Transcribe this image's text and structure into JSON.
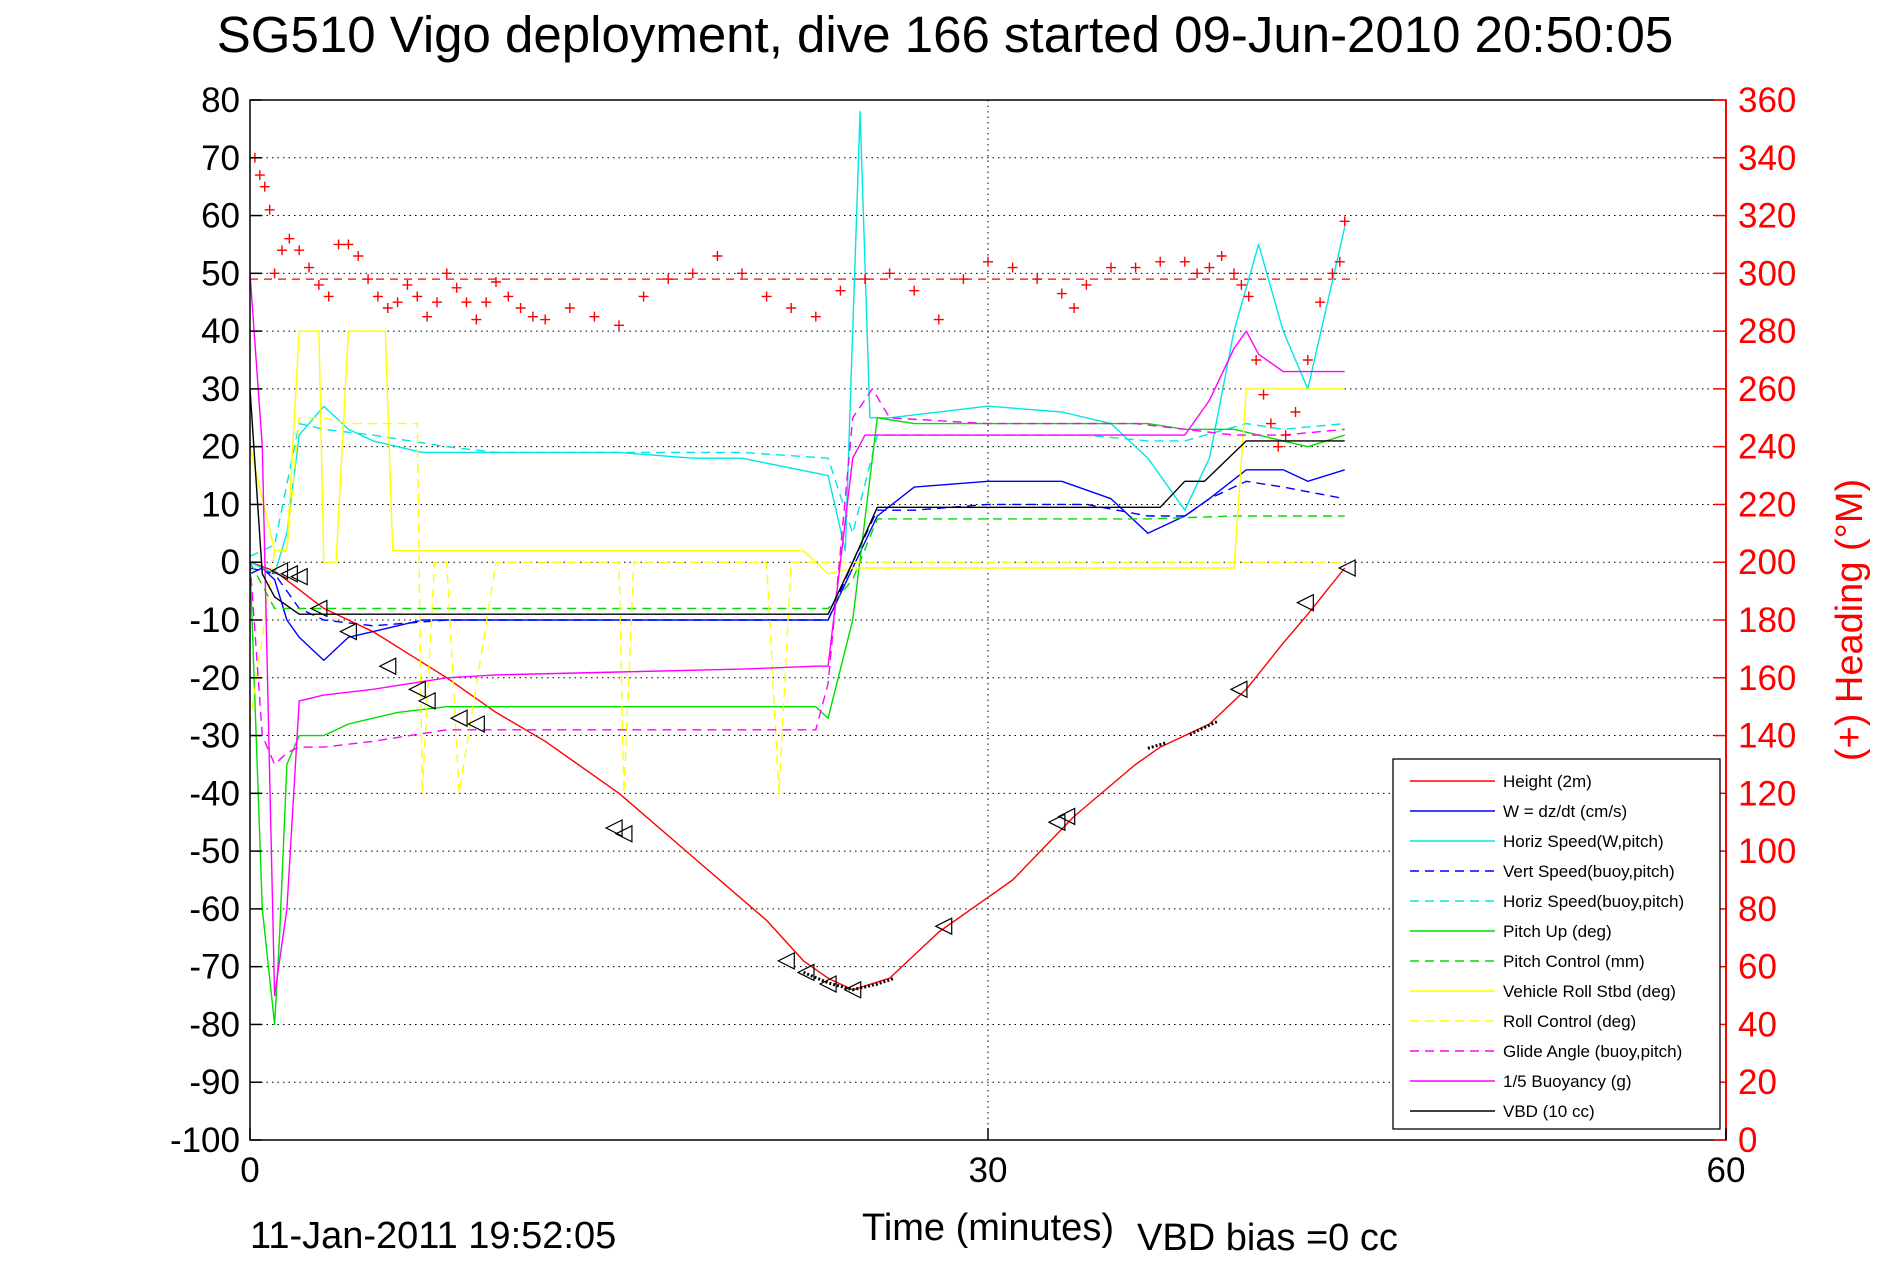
{
  "title": "SG510 Vigo deployment, dive 166 started 09-Jun-2010 20:50:05",
  "footer_left": "11-Jan-2011 19:52:05",
  "footer_right": "VBD bias =0 cc",
  "chart_data": {
    "type": "line",
    "title": "SG510 Vigo deployment, dive 166 started 09-Jun-2010 20:50:05",
    "xlabel": "Time (minutes)",
    "ylabel": "",
    "y2label": "(+) Heading (°M)",
    "xlim": [
      0,
      60
    ],
    "ylim": [
      -100,
      80
    ],
    "y2lim": [
      0,
      360
    ],
    "xticks": [
      0,
      30,
      60
    ],
    "yticks": [
      80,
      70,
      60,
      50,
      40,
      30,
      20,
      10,
      0,
      -10,
      -20,
      -30,
      -40,
      -50,
      -60,
      -70,
      -80,
      -90,
      -100
    ],
    "y2ticks": [
      360,
      340,
      320,
      300,
      280,
      260,
      240,
      220,
      200,
      180,
      160,
      140,
      120,
      100,
      80,
      60,
      40,
      20,
      0
    ],
    "grid": true,
    "legend_position": "bottom-right",
    "series": [
      {
        "name": "Height (2m)",
        "color": "#ff0000",
        "style": "solid",
        "x": [
          0,
          1,
          3,
          5,
          8,
          10,
          12,
          15,
          18,
          21,
          22.5,
          23.5,
          24.5,
          26,
          28,
          31,
          33.5,
          36,
          37,
          38,
          39,
          40.5,
          42,
          43,
          44.5
        ],
        "y": [
          0,
          -1.5,
          -8,
          -12,
          -20,
          -26,
          -31,
          -40,
          -51,
          -62,
          -69,
          -72,
          -74,
          -72,
          -64,
          -55,
          -44,
          -35,
          -32,
          -30,
          -28,
          -22,
          -14,
          -9,
          -1
        ]
      },
      {
        "name": "W = dz/dt (cm/s)",
        "color": "#0000ff",
        "style": "solid",
        "x": [
          0,
          0.5,
          1,
          1.5,
          2,
          3,
          4,
          5,
          6,
          7,
          8,
          10,
          15,
          20,
          23.5,
          24.5,
          25.5,
          27,
          30,
          33,
          35,
          36.5,
          38,
          39,
          40.5,
          42,
          43,
          44.5
        ],
        "y": [
          -2,
          -1,
          -3,
          -10,
          -13,
          -17,
          -13,
          -12,
          -11,
          -10,
          -10,
          -10,
          -10,
          -10,
          -10,
          -1,
          8,
          13,
          14,
          14,
          11,
          5,
          8,
          11,
          16,
          16,
          14,
          16
        ]
      },
      {
        "name": "Horiz Speed(W,pitch)",
        "color": "#00e6e6",
        "style": "solid",
        "x": [
          0,
          1,
          1.5,
          2,
          3,
          4,
          5,
          6,
          7,
          8,
          10,
          12,
          15,
          18,
          20,
          23.5,
          24.2,
          24.8,
          25.2,
          26,
          30,
          33,
          35,
          36.5,
          38,
          39,
          40,
          41,
          42,
          43,
          44.5
        ],
        "y": [
          0,
          -2,
          5,
          22,
          27,
          23,
          21,
          20,
          19,
          19,
          19,
          19,
          19,
          18,
          18,
          15,
          2,
          78,
          25,
          25,
          27,
          26,
          24,
          18,
          9,
          18,
          40,
          55,
          40,
          30,
          58
        ]
      },
      {
        "name": "Vert Speed(buoy,pitch)",
        "color": "#0000ff",
        "style": "dashed",
        "x": [
          0,
          1,
          2,
          3,
          5,
          8,
          10,
          15,
          20,
          23.5,
          24.5,
          25.5,
          27,
          30,
          34,
          36.5,
          38,
          39,
          40.5,
          42,
          44.5
        ],
        "y": [
          -1,
          -2,
          -8,
          -10,
          -11,
          -10,
          -10,
          -10,
          -10,
          -10,
          0,
          9,
          9,
          10,
          10,
          8,
          8,
          11,
          14,
          13,
          11
        ]
      },
      {
        "name": "Horiz Speed(buoy,pitch)",
        "color": "#00e6e6",
        "style": "dashed",
        "x": [
          0,
          1,
          2,
          3,
          5,
          8,
          10,
          15,
          20,
          23.5,
          24.5,
          25.5,
          27,
          30,
          34,
          36.5,
          38,
          40.5,
          42,
          44.5
        ],
        "y": [
          1,
          3,
          24,
          23,
          22,
          20,
          19,
          19,
          19,
          18,
          5,
          22,
          22,
          22,
          22,
          21,
          21,
          24,
          23,
          24
        ]
      },
      {
        "name": "Pitch Up (deg)",
        "color": "#00dd00",
        "style": "solid",
        "x": [
          0,
          0.5,
          1,
          1.2,
          1.5,
          2,
          3,
          4,
          5,
          6,
          8,
          10,
          15,
          20,
          23,
          23.5,
          24.5,
          25.5,
          27,
          30,
          34,
          36.5,
          38,
          40,
          41,
          42,
          43,
          44.5
        ],
        "y": [
          0,
          -60,
          -80,
          -65,
          -35,
          -30,
          -30,
          -28,
          -27,
          -26,
          -25,
          -25,
          -25,
          -25,
          -25,
          -27,
          -10,
          25,
          24,
          24,
          24,
          24,
          23,
          23,
          22,
          21,
          20,
          22
        ]
      },
      {
        "name": "Pitch Control (mm)",
        "color": "#00dd00",
        "style": "dashed",
        "x": [
          0,
          1,
          2,
          3,
          10,
          20,
          23.5,
          24.5,
          25.5,
          30,
          36.5,
          40,
          44.5
        ],
        "y": [
          0,
          -8,
          -8,
          -8,
          -8,
          -8,
          -8,
          -3,
          7.5,
          7.5,
          7.5,
          8,
          8
        ]
      },
      {
        "name": "Vehicle Roll Stbd (deg)",
        "color": "#ffff00",
        "style": "solid",
        "x": [
          0,
          1,
          1.5,
          2,
          2.8,
          3,
          3.5,
          4,
          4.2,
          5,
          5.5,
          5.8,
          6,
          10,
          15,
          20,
          22.5,
          23.5,
          24.5,
          26,
          28,
          28.5,
          30,
          33,
          33.5,
          34,
          36,
          40,
          40.5,
          44.5
        ],
        "y": [
          20,
          2,
          2,
          40,
          40,
          0,
          0,
          40,
          40,
          40,
          40,
          2,
          2,
          2,
          2,
          2,
          2,
          -2,
          -1,
          -1,
          -1,
          -1,
          -1,
          -1,
          -1,
          -1,
          -1,
          -1,
          30,
          30
        ]
      },
      {
        "name": "Roll Control (deg)",
        "color": "#ffff00",
        "style": "dashed",
        "x": [
          0,
          1,
          1.5,
          2,
          3,
          4,
          5,
          6,
          6.8,
          7,
          7.5,
          8,
          8.5,
          10,
          15,
          15.2,
          15.6,
          16,
          21,
          21.5,
          22,
          23,
          24.5,
          26,
          28,
          30,
          33,
          34,
          36,
          40,
          44.5
        ],
        "y": [
          -28,
          2,
          2,
          25,
          25,
          24,
          24,
          24,
          24,
          -40,
          0,
          0,
          -40,
          0,
          0,
          -40,
          0,
          0,
          0,
          -40,
          0,
          0,
          0,
          0,
          0,
          0,
          0,
          0,
          0,
          0,
          0
        ]
      },
      {
        "name": "Glide Angle (buoy,pitch)",
        "color": "#ff00ff",
        "style": "dashed",
        "x": [
          0,
          0.5,
          1,
          1.5,
          2,
          3,
          5,
          8,
          10,
          15,
          20,
          23,
          23.5,
          24.5,
          25.3,
          26,
          30,
          34,
          36,
          38,
          40,
          42,
          44.5
        ],
        "y": [
          0,
          -30,
          -35,
          -33,
          -32,
          -32,
          -31,
          -29,
          -29,
          -29,
          -29,
          -29,
          -21,
          25,
          30,
          25,
          24,
          24,
          24,
          23,
          22,
          22,
          23
        ]
      },
      {
        "name": "1/5 Buoyancy (g)",
        "color": "#ff00ff",
        "style": "solid",
        "x": [
          0,
          0.5,
          1,
          1.5,
          2,
          3,
          5,
          8,
          10,
          15,
          20,
          23,
          23.5,
          24.5,
          25,
          27,
          30,
          34,
          38,
          39,
          40,
          40.5,
          41,
          42,
          44.5
        ],
        "y": [
          50,
          20,
          -75,
          -60,
          -24,
          -23,
          -22,
          -20,
          -19.5,
          -19,
          -18.5,
          -18,
          -18,
          18,
          22,
          22,
          22,
          22,
          22,
          28,
          37,
          40,
          36,
          33,
          33
        ]
      },
      {
        "name": "VBD (10 cc)",
        "color": "#000000",
        "style": "solid",
        "x": [
          0,
          0.5,
          1,
          2,
          3,
          10,
          20,
          23.5,
          24.5,
          25.5,
          27,
          30,
          34,
          37,
          38,
          38.8,
          40.5,
          42,
          44.5
        ],
        "y": [
          30,
          -2,
          -6,
          -9,
          -9,
          -9,
          -9,
          -9,
          0,
          9.5,
          9.5,
          9.5,
          9.5,
          9.5,
          14,
          14,
          21,
          21,
          21
        ]
      }
    ],
    "heading_axis": "right",
    "heading_reference": {
      "name": "heading-reference",
      "color": "#ff0000",
      "style": "dashed",
      "value": 298
    },
    "heading_points": {
      "name": "(+) Heading (°M)",
      "color": "#ff0000",
      "marker": "+",
      "x": [
        0.2,
        0.4,
        0.6,
        0.8,
        1.0,
        1.3,
        1.6,
        2.0,
        2.4,
        2.8,
        3.2,
        3.6,
        4.0,
        4.4,
        4.8,
        5.2,
        5.6,
        6.0,
        6.4,
        6.8,
        7.2,
        7.6,
        8.0,
        8.4,
        8.8,
        9.2,
        9.6,
        10.0,
        10.5,
        11.0,
        11.5,
        12.0,
        13.0,
        14.0,
        15.0,
        16.0,
        17.0,
        18.0,
        19.0,
        20.0,
        21.0,
        22.0,
        23.0,
        24.0,
        25.0,
        26.0,
        27.0,
        28.0,
        29.0,
        30.0,
        31.0,
        32.0,
        33.0,
        33.5,
        34.0,
        35.0,
        36.0,
        37.0,
        38.0,
        38.5,
        39.0,
        39.5,
        40.0,
        40.3,
        40.6,
        40.9,
        41.2,
        41.5,
        41.8,
        42.1,
        42.5,
        43.0,
        43.5,
        44.0,
        44.3,
        44.5
      ],
      "y": [
        340,
        334,
        330,
        322,
        300,
        308,
        312,
        308,
        302,
        296,
        292,
        310,
        310,
        306,
        298,
        292,
        288,
        290,
        296,
        292,
        285,
        290,
        300,
        295,
        290,
        284,
        290,
        297,
        292,
        288,
        285,
        284,
        288,
        285,
        282,
        292,
        298,
        300,
        306,
        300,
        292,
        288,
        285,
        294,
        298,
        300,
        294,
        284,
        298,
        304,
        302,
        298,
        293,
        288,
        296,
        302,
        302,
        304,
        304,
        300,
        302,
        306,
        300,
        296,
        292,
        270,
        258,
        248,
        240,
        244,
        252,
        270,
        290,
        300,
        304,
        318
      ]
    },
    "triangle_markers": {
      "color": "#000000",
      "marker": "triangle",
      "x": [
        1.2,
        1.6,
        2.0,
        2.8,
        4.0,
        5.6,
        6.8,
        7.2,
        8.5,
        9.2,
        14.8,
        15.2,
        21.8,
        22.6,
        23.5,
        24.5,
        28.2,
        32.8,
        33.2,
        40.2,
        42.9,
        44.6
      ],
      "y": [
        -1.5,
        -2,
        -2.5,
        -8,
        -12,
        -18,
        -22,
        -24,
        -27,
        -28,
        -46,
        -47,
        -69,
        -71,
        -73,
        -74,
        -63,
        -45,
        -44,
        -22,
        -7,
        -1
      ]
    },
    "sample_segments": [
      {
        "color": "#000000",
        "x": [
          22.5,
          23.5,
          24.5,
          25.5,
          26.2
        ],
        "y": [
          -71,
          -72.8,
          -74,
          -73,
          -72
        ]
      },
      {
        "color": "#000000",
        "x": [
          36.5,
          37.2
        ],
        "y": [
          -32.2,
          -31.3
        ]
      },
      {
        "color": "#000000",
        "x": [
          38.2,
          39.3
        ],
        "y": [
          -29.8,
          -27.6
        ]
      }
    ]
  }
}
